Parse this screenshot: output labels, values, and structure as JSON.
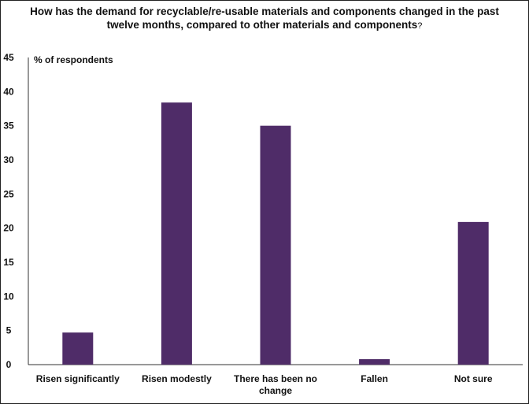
{
  "chart_data": {
    "type": "bar",
    "title_line1": "How has the demand for recyclable/re-usable materials and components changed in the past",
    "title_line2": "twelve months, compared to other materials and components",
    "title_suffix": "?",
    "ylabel": "% of respondents",
    "ylim": [
      0,
      45
    ],
    "yticks": [
      "0",
      "5",
      "10",
      "15",
      "20",
      "25",
      "30",
      "35",
      "40",
      "45"
    ],
    "categories": [
      [
        "Risen significantly"
      ],
      [
        "Risen modestly"
      ],
      [
        "There has been no",
        "change"
      ],
      [
        "Fallen"
      ],
      [
        "Not sure"
      ]
    ],
    "values": [
      4.7,
      38.4,
      35.0,
      0.8,
      20.9
    ],
    "bar_color": "#4f2c68",
    "grid": false,
    "legend": "none"
  }
}
